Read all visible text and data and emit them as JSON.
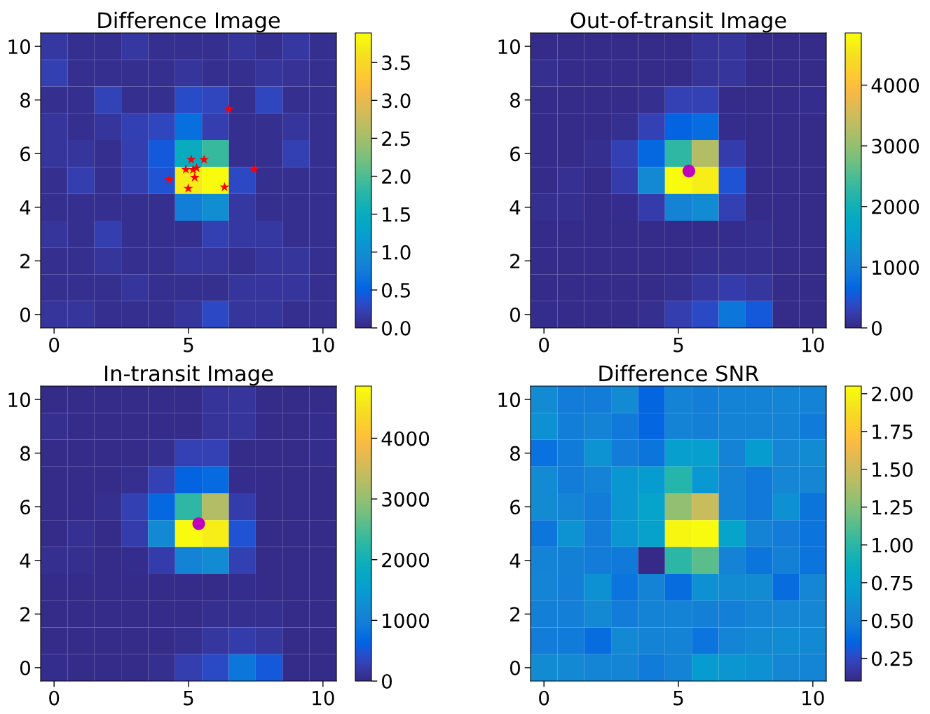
{
  "chart_data": [
    {
      "type": "heatmap",
      "title": "Difference Image",
      "xlim": [
        -0.5,
        10.5
      ],
      "xticks": [
        0,
        5,
        10
      ],
      "ylim": [
        -0.5,
        10.5
      ],
      "yticks": [
        0,
        2,
        4,
        6,
        8,
        10
      ],
      "cells": [
        [
          0.15,
          0.05,
          0.05,
          0.15,
          0.05,
          0.05,
          0.05,
          0.12,
          0.05,
          0.15,
          0.05
        ],
        [
          0.22,
          0.05,
          0.05,
          0.05,
          0.05,
          0.12,
          0.05,
          0.05,
          0.12,
          0.08,
          0.05
        ],
        [
          0.05,
          0.05,
          0.25,
          0.05,
          0.05,
          0.32,
          0.28,
          0.05,
          0.28,
          0.05,
          0.05
        ],
        [
          0.12,
          0.05,
          0.12,
          0.22,
          0.28,
          0.62,
          0.2,
          0.05,
          0.05,
          0.12,
          0.05
        ],
        [
          0.12,
          0.12,
          0.05,
          0.2,
          0.43,
          1.48,
          1.87,
          0.05,
          0.05,
          0.22,
          0.05
        ],
        [
          0.05,
          0.2,
          0.05,
          0.2,
          0.39,
          3.7,
          3.89,
          0.3,
          0.05,
          0.05,
          0.05
        ],
        [
          0.05,
          0.05,
          0.05,
          0.05,
          0.05,
          0.78,
          1.0,
          0.15,
          0.05,
          0.05,
          0.05
        ],
        [
          0.12,
          0.05,
          0.2,
          0.05,
          0.05,
          0.05,
          0.22,
          0.15,
          0.15,
          0.05,
          0.05
        ],
        [
          0.05,
          0.05,
          0.12,
          0.05,
          0.05,
          0.12,
          0.12,
          0.05,
          0.12,
          0.12,
          0.05
        ],
        [
          0.05,
          0.05,
          0.05,
          0.12,
          0.05,
          0.05,
          0.05,
          0.12,
          0.12,
          0.12,
          0.05
        ],
        [
          0.12,
          0.12,
          0.05,
          0.05,
          0.05,
          0.12,
          0.3,
          0.12,
          0.12,
          0.05,
          0.05
        ]
      ],
      "clim": [
        0,
        3.89
      ],
      "cticks": [
        {
          "value": 0,
          "label": "0.0"
        },
        0.5,
        {
          "value": 1,
          "label": "1.0"
        },
        1.5,
        {
          "value": 2,
          "label": "2.0"
        },
        2.5,
        {
          "value": 3,
          "label": "3.0"
        },
        3.5
      ],
      "series": [
        {
          "type": "scatter",
          "color": "#ff0000",
          "marker": "star",
          "x": [
            6.5,
            5.1,
            5.58,
            4.9,
            5.17,
            5.3,
            5.23,
            4.28,
            4.99,
            6.34,
            7.44
          ],
          "values": [
            7.66,
            5.78,
            5.78,
            5.41,
            5.4,
            5.46,
            5.11,
            5.03,
            4.7,
            4.75,
            5.42
          ]
        }
      ]
    },
    {
      "type": "heatmap",
      "title": "Out-of-transit Image",
      "xlim": [
        -0.5,
        10.5
      ],
      "xticks": [
        0,
        5,
        10
      ],
      "ylim": [
        -0.5,
        10.5
      ],
      "yticks": [
        0,
        2,
        4,
        6,
        8,
        10
      ],
      "cells": [
        [
          30,
          30,
          30,
          30,
          30,
          30,
          120,
          150,
          30,
          30,
          30
        ],
        [
          60,
          30,
          30,
          30,
          30,
          30,
          130,
          150,
          30,
          30,
          30
        ],
        [
          30,
          30,
          30,
          30,
          60,
          290,
          290,
          30,
          30,
          30,
          40
        ],
        [
          30,
          30,
          30,
          60,
          300,
          630,
          730,
          50,
          30,
          30,
          30
        ],
        [
          30,
          30,
          60,
          270,
          700,
          2280,
          3260,
          230,
          30,
          30,
          30
        ],
        [
          30,
          80,
          30,
          230,
          1170,
          4860,
          4650,
          490,
          30,
          30,
          30
        ],
        [
          60,
          60,
          30,
          50,
          240,
          1070,
          1210,
          270,
          30,
          30,
          30
        ],
        [
          30,
          30,
          30,
          30,
          30,
          30,
          30,
          50,
          60,
          30,
          30
        ],
        [
          30,
          30,
          30,
          30,
          30,
          30,
          60,
          60,
          60,
          30,
          30
        ],
        [
          30,
          30,
          30,
          30,
          30,
          60,
          170,
          240,
          170,
          30,
          30
        ],
        [
          50,
          30,
          30,
          30,
          60,
          250,
          380,
          870,
          540,
          30,
          30
        ]
      ],
      "clim": [
        0,
        4860
      ],
      "cticks": [
        0,
        1000,
        2000,
        3000,
        4000
      ],
      "series": [
        {
          "type": "scatter",
          "color": "#bf00bf",
          "marker": "circle",
          "x": [
            5.39
          ],
          "values": [
            5.35
          ]
        }
      ]
    },
    {
      "type": "heatmap",
      "title": "In-transit Image",
      "xlim": [
        -0.5,
        10.5
      ],
      "xticks": [
        0,
        5,
        10
      ],
      "ylim": [
        -0.5,
        10.5
      ],
      "yticks": [
        0,
        2,
        4,
        6,
        8,
        10
      ],
      "cells": [
        [
          30,
          30,
          30,
          30,
          30,
          30,
          120,
          150,
          30,
          30,
          30
        ],
        [
          60,
          30,
          30,
          30,
          30,
          30,
          130,
          150,
          30,
          30,
          50
        ],
        [
          30,
          30,
          30,
          30,
          60,
          290,
          290,
          30,
          30,
          30,
          50
        ],
        [
          30,
          30,
          30,
          60,
          300,
          630,
          720,
          50,
          30,
          30,
          30
        ],
        [
          30,
          30,
          60,
          270,
          700,
          2270,
          3250,
          230,
          30,
          30,
          30
        ],
        [
          30,
          80,
          30,
          230,
          1160,
          4860,
          4640,
          490,
          30,
          30,
          30
        ],
        [
          60,
          60,
          30,
          50,
          240,
          1060,
          1200,
          270,
          30,
          30,
          30
        ],
        [
          30,
          30,
          30,
          30,
          30,
          30,
          30,
          50,
          30,
          30,
          30
        ],
        [
          30,
          30,
          30,
          30,
          30,
          30,
          60,
          60,
          60,
          30,
          30
        ],
        [
          30,
          30,
          30,
          30,
          30,
          60,
          170,
          240,
          170,
          30,
          30
        ],
        [
          50,
          30,
          30,
          30,
          60,
          250,
          380,
          870,
          540,
          30,
          30
        ]
      ],
      "clim": [
        0,
        4860
      ],
      "cticks": [
        0,
        1000,
        2000,
        3000,
        4000
      ],
      "series": [
        {
          "type": "scatter",
          "color": "#bf00bf",
          "marker": "circle",
          "x": [
            5.38
          ],
          "values": [
            5.37
          ]
        }
      ]
    },
    {
      "type": "heatmap",
      "title": "Difference SNR",
      "xlim": [
        -0.5,
        10.5
      ],
      "xticks": [
        0,
        5,
        10
      ],
      "ylim": [
        -0.5,
        10.5
      ],
      "yticks": [
        0,
        2,
        4,
        6,
        8,
        10
      ],
      "cells": [
        [
          0.58,
          0.48,
          0.48,
          0.58,
          0.36,
          0.52,
          0.49,
          0.53,
          0.52,
          0.54,
          0.52
        ],
        [
          0.62,
          0.49,
          0.52,
          0.46,
          0.37,
          0.53,
          0.51,
          0.52,
          0.53,
          0.53,
          0.47
        ],
        [
          0.42,
          0.47,
          0.63,
          0.48,
          0.44,
          0.72,
          0.72,
          0.52,
          0.7,
          0.55,
          0.58
        ],
        [
          0.58,
          0.48,
          0.53,
          0.66,
          0.7,
          0.98,
          0.67,
          0.52,
          0.46,
          0.55,
          0.55
        ],
        [
          0.58,
          0.54,
          0.48,
          0.66,
          0.76,
          1.3,
          1.48,
          0.52,
          0.46,
          0.62,
          0.44
        ],
        [
          0.45,
          0.63,
          0.48,
          0.66,
          0.75,
          2.01,
          2.05,
          0.76,
          0.53,
          0.48,
          0.43
        ],
        [
          0.52,
          0.51,
          0.48,
          0.46,
          0.1,
          1.0,
          1.14,
          0.53,
          0.44,
          0.51,
          0.43
        ],
        [
          0.54,
          0.5,
          0.62,
          0.43,
          0.53,
          0.4,
          0.62,
          0.58,
          0.58,
          0.4,
          0.55
        ],
        [
          0.5,
          0.5,
          0.57,
          0.48,
          0.52,
          0.52,
          0.51,
          0.5,
          0.54,
          0.55,
          0.55
        ],
        [
          0.48,
          0.47,
          0.4,
          0.57,
          0.52,
          0.52,
          0.43,
          0.54,
          0.57,
          0.59,
          0.57
        ],
        [
          0.58,
          0.57,
          0.54,
          0.54,
          0.47,
          0.53,
          0.7,
          0.65,
          0.62,
          0.55,
          0.54
        ]
      ],
      "clim": [
        0.1,
        2.05
      ],
      "cticks": [
        0.25,
        {
          "value": 0.5,
          "label": "0.50"
        },
        0.75,
        {
          "value": 1,
          "label": "1.00"
        },
        1.25,
        {
          "value": 1.5,
          "label": "1.50"
        },
        1.75,
        {
          "value": 2,
          "label": "2.00"
        }
      ]
    }
  ]
}
